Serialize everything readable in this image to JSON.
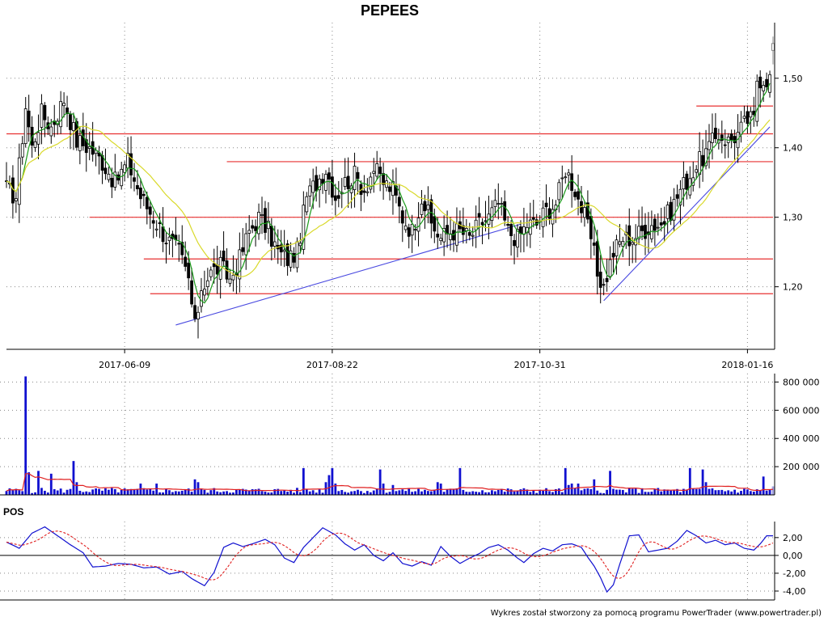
{
  "chart_data": {
    "type": "candlestick",
    "title": "PEPEES",
    "credit": "Wykres został stworzony za pomocą programu PowerTrader (www.powertrader.pl)",
    "price_panel": {
      "ylim": [
        1.11,
        1.58
      ],
      "y_ticks": [
        {
          "value": 1.2,
          "label": "1,20"
        },
        {
          "value": 1.3,
          "label": "1,30"
        },
        {
          "value": 1.4,
          "label": "1,40"
        },
        {
          "value": 1.5,
          "label": "1,50"
        }
      ],
      "x_ticks": [
        {
          "index": 37,
          "label": "2017-06-09"
        },
        {
          "index": 102,
          "label": "2017-08-22"
        },
        {
          "index": 167,
          "label": "2017-10-31"
        },
        {
          "index": 232,
          "label": "2018-01-16"
        }
      ],
      "anchors": [
        [
          0,
          1.34
        ],
        [
          3,
          1.33
        ],
        [
          6,
          1.46
        ],
        [
          8,
          1.4
        ],
        [
          11,
          1.45
        ],
        [
          14,
          1.43
        ],
        [
          18,
          1.47
        ],
        [
          22,
          1.41
        ],
        [
          26,
          1.4
        ],
        [
          30,
          1.38
        ],
        [
          34,
          1.35
        ],
        [
          38,
          1.38
        ],
        [
          42,
          1.33
        ],
        [
          46,
          1.3
        ],
        [
          50,
          1.27
        ],
        [
          54,
          1.25
        ],
        [
          57,
          1.21
        ],
        [
          59,
          1.14
        ],
        [
          61,
          1.2
        ],
        [
          64,
          1.22
        ],
        [
          67,
          1.23
        ],
        [
          70,
          1.21
        ],
        [
          73,
          1.24
        ],
        [
          76,
          1.28
        ],
        [
          79,
          1.3
        ],
        [
          82,
          1.28
        ],
        [
          85,
          1.25
        ],
        [
          88,
          1.24
        ],
        [
          91,
          1.25
        ],
        [
          94,
          1.33
        ],
        [
          97,
          1.35
        ],
        [
          100,
          1.37
        ],
        [
          103,
          1.33
        ],
        [
          106,
          1.35
        ],
        [
          109,
          1.36
        ],
        [
          112,
          1.34
        ],
        [
          115,
          1.37
        ],
        [
          118,
          1.35
        ],
        [
          121,
          1.34
        ],
        [
          124,
          1.3
        ],
        [
          127,
          1.28
        ],
        [
          130,
          1.33
        ],
        [
          133,
          1.29
        ],
        [
          136,
          1.27
        ],
        [
          139,
          1.28
        ],
        [
          142,
          1.28
        ],
        [
          145,
          1.27
        ],
        [
          148,
          1.29
        ],
        [
          151,
          1.3
        ],
        [
          154,
          1.32
        ],
        [
          157,
          1.28
        ],
        [
          160,
          1.27
        ],
        [
          163,
          1.29
        ],
        [
          166,
          1.29
        ],
        [
          169,
          1.31
        ],
        [
          172,
          1.32
        ],
        [
          175,
          1.37
        ],
        [
          178,
          1.34
        ],
        [
          181,
          1.3
        ],
        [
          183,
          1.27
        ],
        [
          185,
          1.22
        ],
        [
          187,
          1.2
        ],
        [
          190,
          1.25
        ],
        [
          193,
          1.27
        ],
        [
          196,
          1.27
        ],
        [
          199,
          1.28
        ],
        [
          202,
          1.29
        ],
        [
          205,
          1.29
        ],
        [
          208,
          1.31
        ],
        [
          211,
          1.34
        ],
        [
          214,
          1.36
        ],
        [
          217,
          1.38
        ],
        [
          220,
          1.4
        ],
        [
          223,
          1.42
        ],
        [
          226,
          1.41
        ],
        [
          229,
          1.42
        ],
        [
          232,
          1.44
        ],
        [
          234,
          1.44
        ],
        [
          235,
          1.5
        ]
      ],
      "last_candle": {
        "open": 1.54,
        "high": 1.56,
        "low": 1.52,
        "close": 1.55
      },
      "horizontal_lines": [
        {
          "value": 1.42,
          "from_index": 0,
          "to_index": 240
        },
        {
          "value": 1.3,
          "from_index": 26,
          "to_index": 240
        },
        {
          "value": 1.24,
          "from_index": 43,
          "to_index": 240
        },
        {
          "value": 1.19,
          "from_index": 45,
          "to_index": 240
        },
        {
          "value": 1.38,
          "from_index": 69,
          "to_index": 240
        },
        {
          "value": 1.46,
          "from_index": 216,
          "to_index": 240
        }
      ],
      "trend_lines": [
        {
          "from": [
            53,
            1.145
          ],
          "to": [
            161,
            1.29
          ]
        },
        {
          "from": [
            187,
            1.18
          ],
          "to": [
            239,
            1.43
          ]
        }
      ],
      "moving_averages": [
        {
          "period": 5,
          "color": "#1a9a1a"
        },
        {
          "period": 20,
          "color": "#d9d92a"
        }
      ]
    },
    "volume_panel": {
      "ylim": [
        0,
        860000
      ],
      "y_ticks": [
        {
          "value": 200000,
          "label": "200 000"
        },
        {
          "value": 400000,
          "label": "400 000"
        },
        {
          "value": 600000,
          "label": "600 000"
        },
        {
          "value": 800000,
          "label": "800 000"
        }
      ],
      "spikes": [
        [
          6,
          840000
        ],
        [
          7,
          160000
        ],
        [
          10,
          170000
        ],
        [
          14,
          150000
        ],
        [
          21,
          240000
        ],
        [
          22,
          90000
        ],
        [
          42,
          80000
        ],
        [
          47,
          80000
        ],
        [
          59,
          110000
        ],
        [
          60,
          90000
        ],
        [
          93,
          190000
        ],
        [
          100,
          90000
        ],
        [
          101,
          140000
        ],
        [
          102,
          190000
        ],
        [
          103,
          80000
        ],
        [
          117,
          180000
        ],
        [
          118,
          80000
        ],
        [
          121,
          70000
        ],
        [
          135,
          90000
        ],
        [
          136,
          80000
        ],
        [
          142,
          190000
        ],
        [
          175,
          190000
        ],
        [
          176,
          70000
        ],
        [
          177,
          80000
        ],
        [
          179,
          80000
        ],
        [
          184,
          110000
        ],
        [
          189,
          170000
        ],
        [
          214,
          190000
        ],
        [
          218,
          180000
        ],
        [
          219,
          90000
        ],
        [
          237,
          130000
        ],
        [
          240,
          60000
        ]
      ],
      "avg_color": "#e02020",
      "bar_color": "#1010d0"
    },
    "oscillator_panel": {
      "label": "POS",
      "ylim": [
        -5,
        3.8
      ],
      "y_ticks": [
        {
          "value": 2,
          "label": "2,00"
        },
        {
          "value": 0,
          "label": "0,00"
        },
        {
          "value": -2,
          "label": "-2,00"
        },
        {
          "value": -4,
          "label": "-4,00"
        }
      ],
      "anchors": [
        [
          0,
          1.5
        ],
        [
          4,
          0.8
        ],
        [
          8,
          2.5
        ],
        [
          12,
          3.2
        ],
        [
          16,
          2.2
        ],
        [
          20,
          1.2
        ],
        [
          24,
          0.3
        ],
        [
          27,
          -1.3
        ],
        [
          31,
          -1.2
        ],
        [
          35,
          -0.9
        ],
        [
          39,
          -1.0
        ],
        [
          43,
          -1.4
        ],
        [
          47,
          -1.3
        ],
        [
          51,
          -2.1
        ],
        [
          55,
          -1.8
        ],
        [
          58,
          -2.6
        ],
        [
          62,
          -3.4
        ],
        [
          65,
          -1.9
        ],
        [
          68,
          0.9
        ],
        [
          71,
          1.4
        ],
        [
          74,
          1.0
        ],
        [
          77,
          1.3
        ],
        [
          81,
          1.8
        ],
        [
          84,
          1.2
        ],
        [
          87,
          -0.3
        ],
        [
          90,
          -0.8
        ],
        [
          93,
          0.9
        ],
        [
          96,
          2.0
        ],
        [
          99,
          3.1
        ],
        [
          103,
          2.3
        ],
        [
          106,
          1.3
        ],
        [
          109,
          0.6
        ],
        [
          112,
          1.2
        ],
        [
          115,
          0.0
        ],
        [
          118,
          -0.6
        ],
        [
          121,
          0.3
        ],
        [
          124,
          -0.9
        ],
        [
          127,
          -1.2
        ],
        [
          130,
          -0.7
        ],
        [
          133,
          -1.1
        ],
        [
          136,
          1.0
        ],
        [
          139,
          -0.1
        ],
        [
          142,
          -0.9
        ],
        [
          145,
          -0.3
        ],
        [
          148,
          0.2
        ],
        [
          151,
          0.9
        ],
        [
          154,
          1.2
        ],
        [
          157,
          0.6
        ],
        [
          160,
          -0.3
        ],
        [
          162,
          -0.8
        ],
        [
          165,
          0.2
        ],
        [
          168,
          0.8
        ],
        [
          171,
          0.5
        ],
        [
          174,
          1.2
        ],
        [
          177,
          1.3
        ],
        [
          180,
          0.9
        ],
        [
          182,
          -0.2
        ],
        [
          184,
          -1.2
        ],
        [
          186,
          -2.5
        ],
        [
          188,
          -4.1
        ],
        [
          190,
          -3.3
        ],
        [
          192,
          -1.0
        ],
        [
          195,
          2.2
        ],
        [
          198,
          2.3
        ],
        [
          201,
          0.4
        ],
        [
          204,
          0.6
        ],
        [
          207,
          0.8
        ],
        [
          210,
          1.6
        ],
        [
          213,
          2.8
        ],
        [
          216,
          2.2
        ],
        [
          219,
          1.4
        ],
        [
          222,
          1.7
        ],
        [
          225,
          1.2
        ],
        [
          228,
          1.4
        ],
        [
          231,
          0.8
        ],
        [
          234,
          0.6
        ],
        [
          236,
          1.3
        ],
        [
          238,
          2.2
        ]
      ],
      "line_color": "#1010d0",
      "signal_color": "#e02020"
    }
  }
}
